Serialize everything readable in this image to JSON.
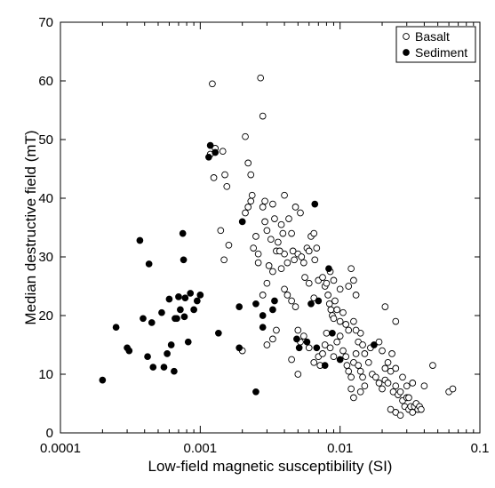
{
  "chart_data": {
    "type": "scatter",
    "xlabel": "Low-field magnetic susceptibility (SI)",
    "ylabel": "Median destructive field (mT)",
    "x_scale": "log",
    "xlim": [
      0.0001,
      0.1
    ],
    "ylim": [
      0,
      70
    ],
    "x_ticks": [
      0.0001,
      0.001,
      0.01,
      0.1
    ],
    "x_tick_labels": [
      "0.0001",
      "0.001",
      "0.01",
      "0.1"
    ],
    "y_ticks": [
      0,
      10,
      20,
      30,
      40,
      50,
      60,
      70
    ],
    "y_tick_labels": [
      "0",
      "10",
      "20",
      "30",
      "40",
      "50",
      "60",
      "70"
    ],
    "grid": false,
    "legend_position": "top-right",
    "series": [
      {
        "name": "Basalt",
        "marker": "open-circle",
        "points": [
          [
            0.00118,
            47.5
          ],
          [
            0.00122,
            59.5
          ],
          [
            0.00125,
            43.5
          ],
          [
            0.00128,
            48.5
          ],
          [
            0.00145,
            48.0
          ],
          [
            0.0015,
            44.0
          ],
          [
            0.00155,
            42.0
          ],
          [
            0.0016,
            32.0
          ],
          [
            0.00148,
            29.5
          ],
          [
            0.0014,
            34.5
          ],
          [
            0.0021,
            50.5
          ],
          [
            0.0022,
            46.0
          ],
          [
            0.0023,
            44.0
          ],
          [
            0.0022,
            38.5
          ],
          [
            0.0023,
            39.5
          ],
          [
            0.0021,
            37.5
          ],
          [
            0.00235,
            40.5
          ],
          [
            0.0025,
            33.5
          ],
          [
            0.0024,
            31.5
          ],
          [
            0.0026,
            30.5
          ],
          [
            0.0026,
            29.0
          ],
          [
            0.0027,
            60.5
          ],
          [
            0.0028,
            54.0
          ],
          [
            0.0029,
            39.5
          ],
          [
            0.0028,
            38.5
          ],
          [
            0.0029,
            36.0
          ],
          [
            0.003,
            34.5
          ],
          [
            0.0032,
            33.0
          ],
          [
            0.0033,
            39.0
          ],
          [
            0.0031,
            28.5
          ],
          [
            0.0033,
            27.5
          ],
          [
            0.003,
            25.5
          ],
          [
            0.0028,
            23.5
          ],
          [
            0.0034,
            36.5
          ],
          [
            0.0035,
            31.0
          ],
          [
            0.0036,
            32.5
          ],
          [
            0.0038,
            35.5
          ],
          [
            0.0039,
            34.0
          ],
          [
            0.004,
            30.5
          ],
          [
            0.0042,
            29.0
          ],
          [
            0.0038,
            28.0
          ],
          [
            0.0037,
            31.0
          ],
          [
            0.004,
            40.5
          ],
          [
            0.0043,
            36.5
          ],
          [
            0.0045,
            34.0
          ],
          [
            0.0046,
            31.0
          ],
          [
            0.0047,
            29.5
          ],
          [
            0.005,
            30.5
          ],
          [
            0.0048,
            38.5
          ],
          [
            0.0052,
            37.5
          ],
          [
            0.0053,
            30.0
          ],
          [
            0.0055,
            29.0
          ],
          [
            0.0058,
            31.5
          ],
          [
            0.006,
            31.0
          ],
          [
            0.0062,
            33.5
          ],
          [
            0.0065,
            34.0
          ],
          [
            0.0066,
            29.5
          ],
          [
            0.0068,
            31.5
          ],
          [
            0.0056,
            26.5
          ],
          [
            0.006,
            25.5
          ],
          [
            0.0065,
            23.0
          ],
          [
            0.007,
            26.0
          ],
          [
            0.0075,
            26.5
          ],
          [
            0.0078,
            25.0
          ],
          [
            0.008,
            25.5
          ],
          [
            0.0082,
            23.5
          ],
          [
            0.0084,
            22.0
          ],
          [
            0.0086,
            21.0
          ],
          [
            0.0088,
            20.0
          ],
          [
            0.009,
            19.5
          ],
          [
            0.0092,
            22.5
          ],
          [
            0.0095,
            21.0
          ],
          [
            0.01,
            19.0
          ],
          [
            0.0105,
            20.5
          ],
          [
            0.011,
            18.5
          ],
          [
            0.0115,
            17.5
          ],
          [
            0.0085,
            27.5
          ],
          [
            0.009,
            26.0
          ],
          [
            0.01,
            24.5
          ],
          [
            0.0115,
            25.0
          ],
          [
            0.012,
            28.0
          ],
          [
            0.0125,
            26.0
          ],
          [
            0.013,
            23.5
          ],
          [
            0.004,
            24.5
          ],
          [
            0.0042,
            23.5
          ],
          [
            0.0045,
            22.5
          ],
          [
            0.0048,
            21.5
          ],
          [
            0.005,
            17.5
          ],
          [
            0.0052,
            15.5
          ],
          [
            0.0055,
            16.5
          ],
          [
            0.005,
            10.0
          ],
          [
            0.0045,
            12.5
          ],
          [
            0.006,
            14.5
          ],
          [
            0.0065,
            12.0
          ],
          [
            0.007,
            13.0
          ],
          [
            0.0072,
            11.5
          ],
          [
            0.0075,
            13.5
          ],
          [
            0.0078,
            15.0
          ],
          [
            0.008,
            17.0
          ],
          [
            0.0085,
            14.5
          ],
          [
            0.009,
            13.0
          ],
          [
            0.0095,
            15.5
          ],
          [
            0.01,
            16.5
          ],
          [
            0.0105,
            14.0
          ],
          [
            0.011,
            13.0
          ],
          [
            0.0112,
            11.5
          ],
          [
            0.0115,
            10.5
          ],
          [
            0.012,
            9.5
          ],
          [
            0.0125,
            12.0
          ],
          [
            0.013,
            13.5
          ],
          [
            0.0135,
            11.5
          ],
          [
            0.014,
            10.5
          ],
          [
            0.0145,
            9.5
          ],
          [
            0.015,
            8.0
          ],
          [
            0.0135,
            15.5
          ],
          [
            0.014,
            17.0
          ],
          [
            0.0145,
            15.0
          ],
          [
            0.015,
            13.5
          ],
          [
            0.0125,
            19.0
          ],
          [
            0.013,
            17.5
          ],
          [
            0.012,
            7.5
          ],
          [
            0.0125,
            6.0
          ],
          [
            0.014,
            7.0
          ],
          [
            0.016,
            12.0
          ],
          [
            0.0165,
            14.5
          ],
          [
            0.017,
            10.0
          ],
          [
            0.018,
            9.5
          ],
          [
            0.019,
            8.5
          ],
          [
            0.02,
            7.5
          ],
          [
            0.021,
            9.0
          ],
          [
            0.022,
            8.5
          ],
          [
            0.023,
            10.5
          ],
          [
            0.024,
            7.0
          ],
          [
            0.025,
            8.0
          ],
          [
            0.026,
            6.5
          ],
          [
            0.027,
            7.0
          ],
          [
            0.028,
            5.5
          ],
          [
            0.029,
            4.5
          ],
          [
            0.03,
            6.0
          ],
          [
            0.031,
            4.0
          ],
          [
            0.032,
            4.5
          ],
          [
            0.033,
            3.5
          ],
          [
            0.034,
            4.5
          ],
          [
            0.035,
            5.0
          ],
          [
            0.036,
            4.0
          ],
          [
            0.037,
            4.5
          ],
          [
            0.038,
            4.0
          ],
          [
            0.023,
            4.0
          ],
          [
            0.025,
            3.5
          ],
          [
            0.027,
            3.0
          ],
          [
            0.022,
            12.0
          ],
          [
            0.0235,
            13.5
          ],
          [
            0.025,
            11.0
          ],
          [
            0.028,
            9.5
          ],
          [
            0.03,
            8.0
          ],
          [
            0.033,
            8.5
          ],
          [
            0.04,
            8.0
          ],
          [
            0.046,
            11.5
          ],
          [
            0.06,
            7.0
          ],
          [
            0.064,
            7.5
          ],
          [
            0.025,
            19.0
          ],
          [
            0.021,
            21.5
          ],
          [
            0.019,
            15.5
          ],
          [
            0.02,
            14.0
          ],
          [
            0.021,
            11.0
          ],
          [
            0.031,
            6.0
          ],
          [
            0.0035,
            17.5
          ],
          [
            0.0033,
            16.0
          ],
          [
            0.003,
            15.0
          ],
          [
            0.002,
            14.0
          ]
        ]
      },
      {
        "name": "Sediment",
        "marker": "filled-circle",
        "points": [
          [
            0.0002,
            9.0
          ],
          [
            0.00025,
            18.0
          ],
          [
            0.0003,
            14.5
          ],
          [
            0.00031,
            14.0
          ],
          [
            0.00037,
            32.8
          ],
          [
            0.00039,
            19.5
          ],
          [
            0.00042,
            13.0
          ],
          [
            0.00043,
            28.8
          ],
          [
            0.00045,
            18.8
          ],
          [
            0.00046,
            11.2
          ],
          [
            0.00053,
            20.5
          ],
          [
            0.00055,
            11.2
          ],
          [
            0.00058,
            13.5
          ],
          [
            0.0006,
            22.8
          ],
          [
            0.00062,
            15.0
          ],
          [
            0.00065,
            10.5
          ],
          [
            0.00066,
            19.5
          ],
          [
            0.00068,
            19.5
          ],
          [
            0.0007,
            23.2
          ],
          [
            0.00072,
            21.0
          ],
          [
            0.00075,
            34.0
          ],
          [
            0.00076,
            29.5
          ],
          [
            0.00077,
            19.8
          ],
          [
            0.00078,
            23.0
          ],
          [
            0.00082,
            15.5
          ],
          [
            0.00085,
            23.8
          ],
          [
            0.0009,
            21.0
          ],
          [
            0.00095,
            22.5
          ],
          [
            0.001,
            23.5
          ],
          [
            0.00115,
            47.0
          ],
          [
            0.00118,
            49.0
          ],
          [
            0.00128,
            47.8
          ],
          [
            0.00135,
            17.0
          ],
          [
            0.0019,
            21.5
          ],
          [
            0.0019,
            14.5
          ],
          [
            0.002,
            36.0
          ],
          [
            0.0025,
            22.0
          ],
          [
            0.0025,
            7.0
          ],
          [
            0.0028,
            18.0
          ],
          [
            0.0028,
            20.0
          ],
          [
            0.0033,
            21.0
          ],
          [
            0.0034,
            22.5
          ],
          [
            0.0049,
            16.0
          ],
          [
            0.0051,
            14.5
          ],
          [
            0.0058,
            15.5
          ],
          [
            0.0062,
            22.0
          ],
          [
            0.0066,
            39.0
          ],
          [
            0.0068,
            14.5
          ],
          [
            0.007,
            22.5
          ],
          [
            0.0078,
            11.5
          ],
          [
            0.0083,
            28.0
          ],
          [
            0.0088,
            17.0
          ],
          [
            0.01,
            12.5
          ],
          [
            0.0175,
            15.0
          ]
        ]
      }
    ]
  }
}
